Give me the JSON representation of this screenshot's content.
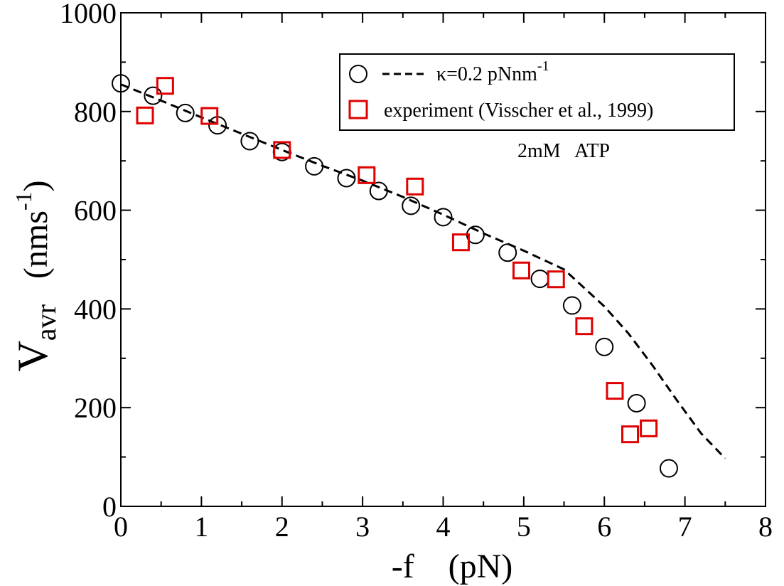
{
  "chart_data": {
    "type": "scatter",
    "title": "",
    "xlabel": "-f    (pN)",
    "ylabel_main": "V",
    "ylabel_sub": "avr",
    "ylabel_unit": "(nms",
    "ylabel_unit_sup": "-1",
    "ylabel_unit_close": ")",
    "xlim": [
      0,
      8
    ],
    "ylim": [
      0,
      1000
    ],
    "x_ticks": [
      "0",
      "1",
      "2",
      "3",
      "4",
      "5",
      "6",
      "7",
      "8"
    ],
    "y_ticks": [
      "0",
      "200",
      "400",
      "600",
      "800",
      "1000"
    ],
    "grid": false,
    "legend_position": "top-right",
    "legend": {
      "theory_label": "κ=0.2 pNnm",
      "theory_label_sup": "-1",
      "experiment_label": "experiment (Visscher et al., 1999)"
    },
    "annotation": "2mM   ATP",
    "series": [
      {
        "name": "κ=0.2 pNnm-1",
        "kind": "circles",
        "color": "#000000",
        "x": [
          0,
          0.4,
          0.8,
          1.2,
          1.6,
          2.0,
          2.4,
          2.8,
          3.2,
          3.6,
          4.0,
          4.4,
          4.8,
          5.2,
          5.6,
          6.0,
          6.4,
          6.8
        ],
        "y": [
          857,
          832,
          797,
          772,
          740,
          718,
          689,
          665,
          639,
          609,
          586,
          550,
          514,
          461,
          407,
          323,
          209,
          77
        ]
      },
      {
        "name": "κ=0.2 pNnm-1",
        "kind": "dashed-line",
        "color": "#000000",
        "x": [
          0,
          0.5,
          1.0,
          1.5,
          2.0,
          2.5,
          3.0,
          3.5,
          4.0,
          4.5,
          5.0,
          5.5,
          6.0,
          6.3,
          6.6,
          6.9,
          7.2,
          7.5
        ],
        "y": [
          855,
          822,
          788,
          755,
          722,
          690,
          660,
          627,
          591,
          553,
          518,
          480,
          405,
          350,
          285,
          215,
          148,
          97
        ]
      },
      {
        "name": "experiment (Visscher et al., 1999)",
        "kind": "squares",
        "color": "#e00000",
        "x": [
          0.3,
          0.55,
          1.1,
          2.0,
          3.05,
          3.65,
          4.22,
          4.97,
          5.4,
          5.75,
          6.13,
          6.32,
          6.55
        ],
        "y": [
          792,
          852,
          791,
          722,
          671,
          648,
          535,
          478,
          460,
          365,
          234,
          146,
          158
        ]
      }
    ]
  }
}
